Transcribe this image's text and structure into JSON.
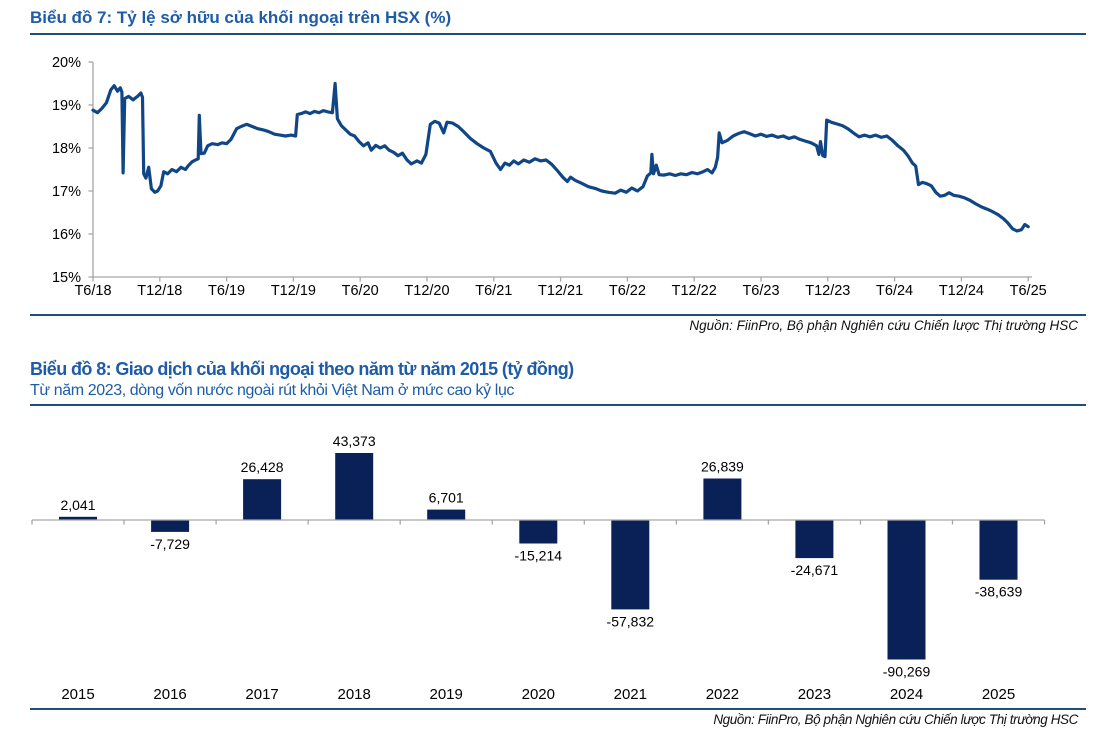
{
  "theme": {
    "title_color": "#1e5ca8",
    "rule_color": "#1f4e79",
    "line_color": "#114686",
    "bar_color": "#092157",
    "axis_color": "#a6a6a6",
    "label_color": "#000000"
  },
  "chart_data": [
    {
      "type": "line",
      "title": "Biểu đồ 7: Tỷ lệ sở hữu của khối ngoại trên HSX (%)",
      "source": "Nguồn: FiinPro, Bộ phận Nghiên cứu Chiến lược Thị trường HSC",
      "series_name": "Tỷ lệ sở hữu của khối ngoại trên HSX",
      "ylim": [
        15,
        20
      ],
      "y_tick_labels": [
        "20%",
        "19%",
        "18%",
        "17%",
        "16%",
        "15%"
      ],
      "x_tick_labels": [
        "T6/18",
        "T12/18",
        "T6/19",
        "T12/19",
        "T6/20",
        "T12/20",
        "T6/21",
        "T12/21",
        "T6/22",
        "T12/22",
        "T6/23",
        "T12/23",
        "T6/24",
        "T12/24",
        "T6/25"
      ],
      "x_unit": "months since Jun-2018",
      "grid": false,
      "legend": "none",
      "points": [
        [
          0,
          18.88
        ],
        [
          0.4,
          18.82
        ],
        [
          0.8,
          18.92
        ],
        [
          1.2,
          19.05
        ],
        [
          1.6,
          19.35
        ],
        [
          1.9,
          19.45
        ],
        [
          2.2,
          19.32
        ],
        [
          2.45,
          19.4
        ],
        [
          2.6,
          19.3
        ],
        [
          2.7,
          17.42
        ],
        [
          2.85,
          19.15
        ],
        [
          3.2,
          19.2
        ],
        [
          3.6,
          19.12
        ],
        [
          4.0,
          19.2
        ],
        [
          4.3,
          19.28
        ],
        [
          4.45,
          19.18
        ],
        [
          4.55,
          17.4
        ],
        [
          4.75,
          17.3
        ],
        [
          5.0,
          17.55
        ],
        [
          5.25,
          17.05
        ],
        [
          5.55,
          16.97
        ],
        [
          5.8,
          17.0
        ],
        [
          6.1,
          17.12
        ],
        [
          6.35,
          17.45
        ],
        [
          6.7,
          17.4
        ],
        [
          7.1,
          17.5
        ],
        [
          7.5,
          17.45
        ],
        [
          7.9,
          17.55
        ],
        [
          8.3,
          17.5
        ],
        [
          8.6,
          17.6
        ],
        [
          8.9,
          17.68
        ],
        [
          9.2,
          17.72
        ],
        [
          9.45,
          17.75
        ],
        [
          9.55,
          18.76
        ],
        [
          9.7,
          17.87
        ],
        [
          10.0,
          17.88
        ],
        [
          10.3,
          18.05
        ],
        [
          10.7,
          18.1
        ],
        [
          11.2,
          18.08
        ],
        [
          11.6,
          18.12
        ],
        [
          12.0,
          18.1
        ],
        [
          12.4,
          18.2
        ],
        [
          12.9,
          18.45
        ],
        [
          13.3,
          18.5
        ],
        [
          13.8,
          18.55
        ],
        [
          14.3,
          18.5
        ],
        [
          14.8,
          18.45
        ],
        [
          15.3,
          18.42
        ],
        [
          15.8,
          18.38
        ],
        [
          16.3,
          18.32
        ],
        [
          16.8,
          18.3
        ],
        [
          17.3,
          18.28
        ],
        [
          17.8,
          18.3
        ],
        [
          18.2,
          18.28
        ],
        [
          18.35,
          18.78
        ],
        [
          18.7,
          18.8
        ],
        [
          19.1,
          18.84
        ],
        [
          19.5,
          18.8
        ],
        [
          19.9,
          18.85
        ],
        [
          20.3,
          18.82
        ],
        [
          20.7,
          18.87
        ],
        [
          21.1,
          18.84
        ],
        [
          21.5,
          18.82
        ],
        [
          21.75,
          19.5
        ],
        [
          21.95,
          18.68
        ],
        [
          22.3,
          18.52
        ],
        [
          22.7,
          18.42
        ],
        [
          23.1,
          18.32
        ],
        [
          23.5,
          18.28
        ],
        [
          23.9,
          18.15
        ],
        [
          24.3,
          18.05
        ],
        [
          24.7,
          18.12
        ],
        [
          25.0,
          17.95
        ],
        [
          25.4,
          18.06
        ],
        [
          25.8,
          18.0
        ],
        [
          26.2,
          18.05
        ],
        [
          26.6,
          17.95
        ],
        [
          27.0,
          17.9
        ],
        [
          27.4,
          17.82
        ],
        [
          27.8,
          17.88
        ],
        [
          28.2,
          17.72
        ],
        [
          28.6,
          17.63
        ],
        [
          29.1,
          17.7
        ],
        [
          29.5,
          17.65
        ],
        [
          29.9,
          17.85
        ],
        [
          30.3,
          18.55
        ],
        [
          30.7,
          18.62
        ],
        [
          31.1,
          18.58
        ],
        [
          31.5,
          18.35
        ],
        [
          31.8,
          18.6
        ],
        [
          32.3,
          18.58
        ],
        [
          32.8,
          18.5
        ],
        [
          33.3,
          18.38
        ],
        [
          33.9,
          18.22
        ],
        [
          34.5,
          18.1
        ],
        [
          35.1,
          18.0
        ],
        [
          35.7,
          17.92
        ],
        [
          36.2,
          17.65
        ],
        [
          36.6,
          17.5
        ],
        [
          37.0,
          17.65
        ],
        [
          37.4,
          17.6
        ],
        [
          37.8,
          17.7
        ],
        [
          38.2,
          17.63
        ],
        [
          38.7,
          17.72
        ],
        [
          39.2,
          17.67
        ],
        [
          39.7,
          17.75
        ],
        [
          40.2,
          17.7
        ],
        [
          40.7,
          17.72
        ],
        [
          41.2,
          17.62
        ],
        [
          41.7,
          17.48
        ],
        [
          42.2,
          17.32
        ],
        [
          42.6,
          17.22
        ],
        [
          42.9,
          17.32
        ],
        [
          43.3,
          17.25
        ],
        [
          43.9,
          17.18
        ],
        [
          44.5,
          17.1
        ],
        [
          45.1,
          17.06
        ],
        [
          45.7,
          17.0
        ],
        [
          46.3,
          16.97
        ],
        [
          46.9,
          16.95
        ],
        [
          47.4,
          17.02
        ],
        [
          47.9,
          16.97
        ],
        [
          48.4,
          17.07
        ],
        [
          48.9,
          17.0
        ],
        [
          49.4,
          17.1
        ],
        [
          49.8,
          17.35
        ],
        [
          50.1,
          17.42
        ],
        [
          50.2,
          17.85
        ],
        [
          50.35,
          17.4
        ],
        [
          50.6,
          17.6
        ],
        [
          50.85,
          17.38
        ],
        [
          51.3,
          17.37
        ],
        [
          51.8,
          17.4
        ],
        [
          52.3,
          17.36
        ],
        [
          52.8,
          17.4
        ],
        [
          53.3,
          17.38
        ],
        [
          53.8,
          17.43
        ],
        [
          54.3,
          17.4
        ],
        [
          54.8,
          17.45
        ],
        [
          55.2,
          17.5
        ],
        [
          55.6,
          17.42
        ],
        [
          55.9,
          17.55
        ],
        [
          56.1,
          17.78
        ],
        [
          56.25,
          18.35
        ],
        [
          56.5,
          18.12
        ],
        [
          57.0,
          18.18
        ],
        [
          57.5,
          18.28
        ],
        [
          58.0,
          18.34
        ],
        [
          58.5,
          18.38
        ],
        [
          59.0,
          18.33
        ],
        [
          59.5,
          18.28
        ],
        [
          60.0,
          18.32
        ],
        [
          60.5,
          18.27
        ],
        [
          61.0,
          18.3
        ],
        [
          61.5,
          18.25
        ],
        [
          62.0,
          18.28
        ],
        [
          62.5,
          18.22
        ],
        [
          63.0,
          18.26
        ],
        [
          63.5,
          18.2
        ],
        [
          64.0,
          18.16
        ],
        [
          64.5,
          18.12
        ],
        [
          65.0,
          18.05
        ],
        [
          65.2,
          17.85
        ],
        [
          65.35,
          18.15
        ],
        [
          65.55,
          17.82
        ],
        [
          65.75,
          17.8
        ],
        [
          65.9,
          18.65
        ],
        [
          66.3,
          18.6
        ],
        [
          66.8,
          18.56
        ],
        [
          67.3,
          18.52
        ],
        [
          67.8,
          18.45
        ],
        [
          68.3,
          18.35
        ],
        [
          68.8,
          18.26
        ],
        [
          69.3,
          18.3
        ],
        [
          69.8,
          18.26
        ],
        [
          70.3,
          18.3
        ],
        [
          70.8,
          18.25
        ],
        [
          71.3,
          18.28
        ],
        [
          71.8,
          18.18
        ],
        [
          72.3,
          18.05
        ],
        [
          72.8,
          17.95
        ],
        [
          73.2,
          17.82
        ],
        [
          73.6,
          17.65
        ],
        [
          73.9,
          17.58
        ],
        [
          74.15,
          17.15
        ],
        [
          74.5,
          17.2
        ],
        [
          74.9,
          17.17
        ],
        [
          75.3,
          17.12
        ],
        [
          75.7,
          16.97
        ],
        [
          76.1,
          16.88
        ],
        [
          76.5,
          16.9
        ],
        [
          76.9,
          16.96
        ],
        [
          77.3,
          16.9
        ],
        [
          77.8,
          16.88
        ],
        [
          78.3,
          16.84
        ],
        [
          78.8,
          16.78
        ],
        [
          79.3,
          16.7
        ],
        [
          79.8,
          16.63
        ],
        [
          80.3,
          16.58
        ],
        [
          80.8,
          16.52
        ],
        [
          81.3,
          16.45
        ],
        [
          81.8,
          16.35
        ],
        [
          82.2,
          16.25
        ],
        [
          82.6,
          16.12
        ],
        [
          83.0,
          16.07
        ],
        [
          83.4,
          16.1
        ],
        [
          83.7,
          16.22
        ],
        [
          84.0,
          16.17
        ]
      ]
    },
    {
      "type": "bar",
      "title": "Biểu đồ 8: Giao dịch của khối ngoại theo năm từ năm 2015 (tỷ đồng)",
      "subtitle": "Từ năm 2023, dòng vốn nước ngoài rút khỏi Việt Nam ở mức cao kỷ lục",
      "source": "Nguồn: FiinPro, Bộ phận Nghiên cứu Chiến lược Thị trường HSC",
      "categories": [
        "2015",
        "2016",
        "2017",
        "2018",
        "2019",
        "2020",
        "2021",
        "2022",
        "2023",
        "2024",
        "2025"
      ],
      "values": [
        2041,
        -7729,
        26428,
        43373,
        6701,
        -15214,
        -57832,
        26839,
        -24671,
        -90269,
        -38639
      ],
      "value_labels": [
        "2,041",
        "-7,729",
        "26,428",
        "43,373",
        "6,701",
        "-15,214",
        "-57,832",
        "26,839",
        "-24,671",
        "-90,269",
        "-38,639"
      ],
      "baseline": 0,
      "grid": false,
      "legend": "none",
      "ylabel": "tỷ đồng"
    }
  ]
}
